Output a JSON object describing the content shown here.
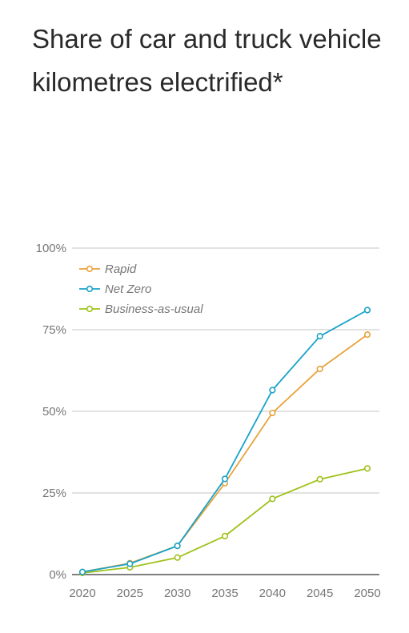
{
  "chart_data": {
    "type": "line",
    "title": "Share of car and truck vehicle kilometres electrified*",
    "x": [
      2020,
      2025,
      2030,
      2035,
      2040,
      2045,
      2050
    ],
    "x_tick_labels": [
      "2020",
      "2025",
      "2030",
      "2035",
      "2040",
      "2045",
      "2050"
    ],
    "ylim": [
      0,
      100
    ],
    "y_ticks": [
      0,
      25,
      50,
      75,
      100
    ],
    "y_tick_labels": [
      "0%",
      "25%",
      "50%",
      "75%",
      "100%"
    ],
    "grid": true,
    "legend_position": "top-left",
    "series": [
      {
        "name": "Rapid",
        "color": "#e8a33c",
        "values": [
          0.8,
          3.5,
          8.8,
          28,
          49.5,
          63,
          73.5
        ]
      },
      {
        "name": "Net Zero",
        "color": "#1aa3c9",
        "values": [
          0.8,
          3.3,
          8.8,
          29.3,
          56.5,
          73,
          81
        ]
      },
      {
        "name": "Business-as-usual",
        "color": "#9ec21a",
        "values": [
          0.5,
          2.2,
          5.2,
          11.8,
          23.2,
          29.2,
          32.5
        ]
      }
    ]
  }
}
